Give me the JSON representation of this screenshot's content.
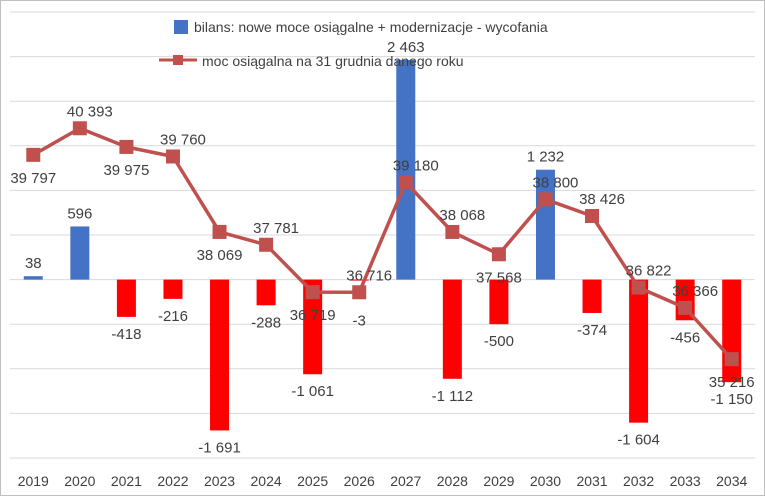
{
  "chart_data": {
    "type": "bar",
    "categories": [
      "2019",
      "2020",
      "2021",
      "2022",
      "2023",
      "2024",
      "2025",
      "2026",
      "2027",
      "2028",
      "2029",
      "2030",
      "2031",
      "2032",
      "2033",
      "2034"
    ],
    "series": [
      {
        "name": "bilans: nowe moce osiągalne + modernizacje - wycofania",
        "kind": "bar",
        "values": [
          38,
          596,
          -418,
          -216,
          -1691,
          -288,
          -1061,
          -3,
          2463,
          -1112,
          -500,
          1232,
          -374,
          -1604,
          -456,
          -1150
        ],
        "labels": [
          "38",
          "596",
          "-418",
          "-216",
          "-1 691",
          "-288",
          "-1 061",
          "-3",
          "2 463",
          "-1 112",
          "-500",
          "1 232",
          "-374",
          "-1 604",
          "-456",
          "-1 150"
        ]
      },
      {
        "name": "moc osiągalna na 31 grudnia danego roku",
        "kind": "line",
        "values": [
          39797,
          40393,
          39975,
          39760,
          38069,
          37781,
          36719,
          36716,
          39180,
          38068,
          37568,
          38800,
          38426,
          36822,
          36366,
          35216
        ],
        "labels": [
          "39 797",
          "40 393",
          "39 975",
          "39 760",
          "38 069",
          "37 781",
          "36 719",
          "36 716",
          "39 180",
          "38 068",
          "37 568",
          "38 800",
          "38 426",
          "36 822",
          "36 366",
          "35 216"
        ]
      }
    ],
    "colors": {
      "positive_bar": "#4472C4",
      "negative_bar": "#FF0000",
      "line": "#C0504D",
      "grid": "#D9D9D9"
    },
    "line_axis": {
      "min": 33000,
      "max": 43000
    },
    "bar_axis": {
      "min": -2000,
      "max": 3000
    },
    "legend_position": "top",
    "grid": true
  }
}
